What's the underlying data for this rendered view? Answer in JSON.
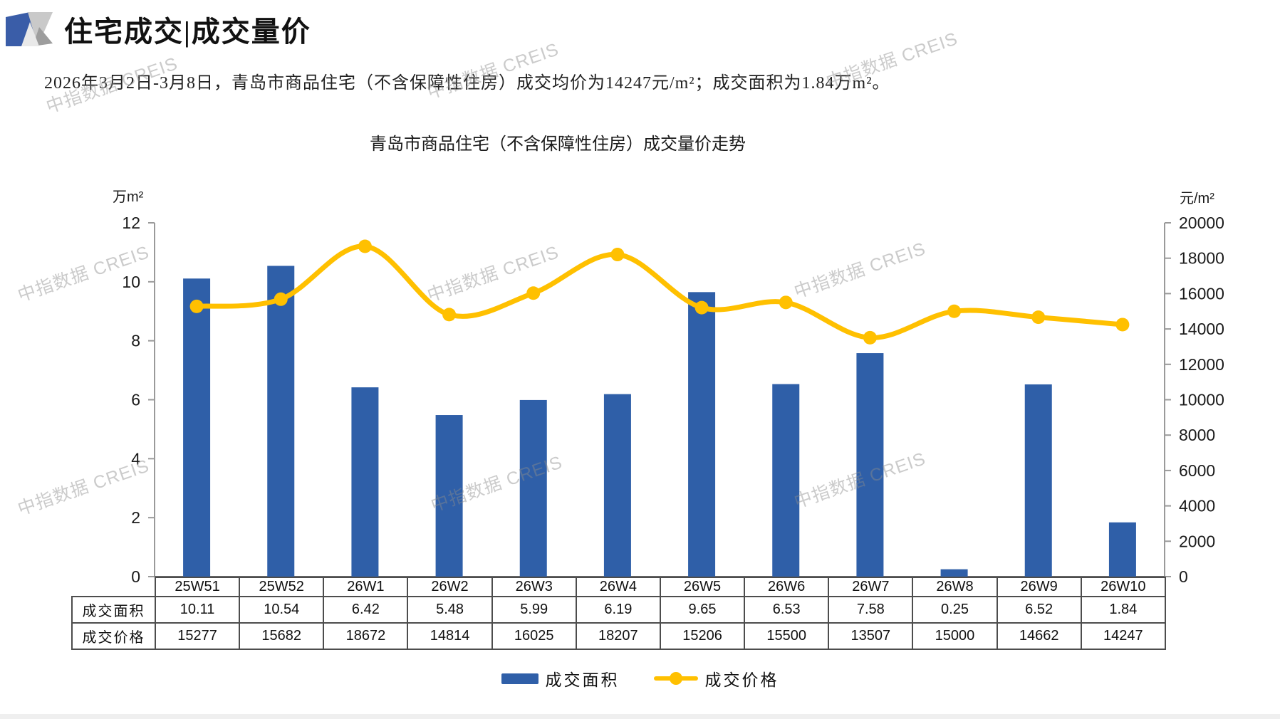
{
  "header": {
    "title": "住宅成交|成交量价",
    "subtitle": "2026年3月2日-3月8日，青岛市商品住宅（不含保障性住房）成交均价为14247元/m²；成交面积为1.84万m²。"
  },
  "watermark": {
    "text": "中指数据 CREIS"
  },
  "chart_data": {
    "type": "combo-bar-line",
    "title": "青岛市商品住宅（不含保障性住房）成交量价走势",
    "categories": [
      "25W51",
      "25W52",
      "26W1",
      "26W2",
      "26W3",
      "26W4",
      "26W5",
      "26W6",
      "26W7",
      "26W8",
      "26W9",
      "26W10"
    ],
    "series": [
      {
        "name": "成交面积",
        "type": "bar",
        "axis": "left",
        "color": "#2F5FA8",
        "values": [
          10.11,
          10.54,
          6.42,
          5.48,
          5.99,
          6.19,
          9.65,
          6.53,
          7.58,
          0.25,
          6.52,
          1.84
        ]
      },
      {
        "name": "成交价格",
        "type": "line",
        "axis": "right",
        "color": "#FFC000",
        "values": [
          15277,
          15682,
          18672,
          14814,
          16025,
          18207,
          15206,
          15500,
          13507,
          15000,
          14662,
          14247
        ]
      }
    ],
    "left_axis": {
      "label": "万m²",
      "min": 0,
      "max": 12,
      "step": 2
    },
    "right_axis": {
      "label": "元/m²",
      "min": 0,
      "max": 20000,
      "step": 2000
    },
    "grid": false,
    "legend_position": "bottom"
  },
  "table": {
    "row_headers": [
      "成交面积",
      "成交价格"
    ]
  },
  "colors": {
    "bar": "#2F5FA8",
    "line": "#FFC000",
    "axis": "#9a9a9a",
    "border": "#4d4d4d"
  }
}
